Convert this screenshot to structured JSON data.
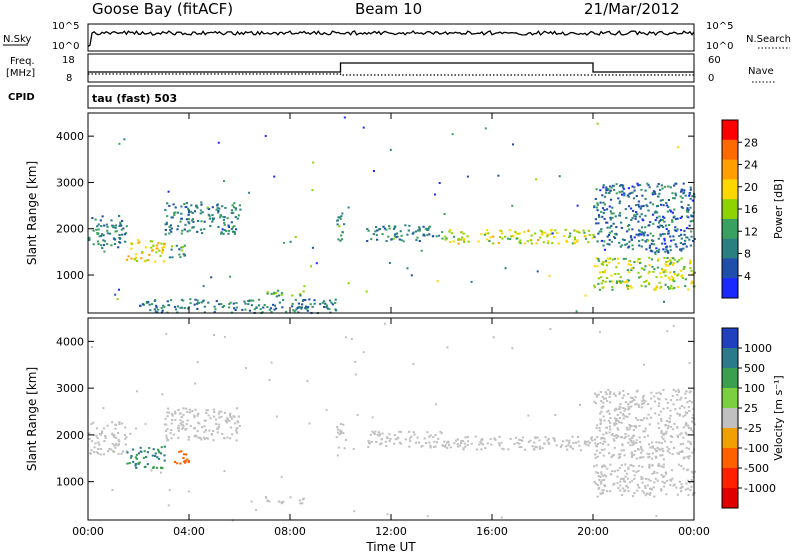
{
  "header": {
    "station": "Goose Bay (fitACF)",
    "beam": "Beam 10",
    "date": "21/Mar/2012"
  },
  "strips": {
    "nsky_label": "N.Sky",
    "nsky_ticks": [
      "10^5",
      "10^0"
    ],
    "nsearch_label": "N.Search",
    "freq_label_1": "Freq.",
    "freq_label_2": "[MHz]",
    "freq_ticks": [
      "18",
      "8"
    ],
    "nave_label": "Nave",
    "nave_ticks": [
      "60",
      "0"
    ],
    "cpid_label": "CPID",
    "cpid_value": "tau (fast) 503"
  },
  "axes": {
    "xlabel": "Time UT",
    "xticks": [
      "00:00",
      "04:00",
      "08:00",
      "12:00",
      "16:00",
      "20:00",
      "00:00"
    ],
    "ylabel": "Slant Range [km]",
    "yticks": [
      "4000",
      "3000",
      "2000",
      "1000"
    ]
  },
  "power_cbar": {
    "label": "Power [dB]",
    "ticks": [
      "28",
      "24",
      "20",
      "16",
      "12",
      "8",
      "4"
    ],
    "colors": [
      "#ff0000",
      "#ff6a00",
      "#ffa000",
      "#ffd700",
      "#8fd400",
      "#3aa060",
      "#2a7f80",
      "#1f4faa",
      "#1a2aff"
    ]
  },
  "velocity_cbar": {
    "label": "Velocity [m s⁻¹]",
    "ticks": [
      "1000",
      "500",
      "100",
      "25",
      "-25",
      "-100",
      "-500",
      "-1000"
    ],
    "colors": [
      "#2040c0",
      "#2a7a8a",
      "#3aa050",
      "#7cd040",
      "#c0c0c0",
      "#f0a000",
      "#ff6000",
      "#ff2000",
      "#e00000"
    ]
  },
  "chart_data": [
    {
      "type": "heatmap",
      "name": "power",
      "xlabel": "Time UT",
      "ylabel": "Slant Range [km]",
      "xlim": [
        0,
        24
      ],
      "ylim": [
        180,
        4500
      ],
      "colorbar_label": "Power [dB]",
      "colorbar_ticks": [
        28,
        24,
        20,
        16,
        12,
        8,
        4
      ],
      "blobs": [
        {
          "t0": 0.0,
          "t1": 1.5,
          "r0": 1600,
          "r1": 2300,
          "val": 8
        },
        {
          "t0": 1.5,
          "t1": 3.0,
          "r0": 1300,
          "r1": 1800,
          "val": 18
        },
        {
          "t0": 3.0,
          "t1": 6.0,
          "r0": 1900,
          "r1": 2600,
          "val": 8
        },
        {
          "t0": 3.2,
          "t1": 4.0,
          "r0": 1400,
          "r1": 1700,
          "val": 10
        },
        {
          "t0": 7.0,
          "t1": 8.6,
          "r0": 550,
          "r1": 700,
          "val": 12
        },
        {
          "t0": 2.0,
          "t1": 10.0,
          "r0": 200,
          "r1": 500,
          "val": 8
        },
        {
          "t0": 9.8,
          "t1": 10.2,
          "r0": 1700,
          "r1": 2300,
          "val": 10
        },
        {
          "t0": 11.0,
          "t1": 14.0,
          "r0": 1750,
          "r1": 2100,
          "val": 8
        },
        {
          "t0": 14.0,
          "t1": 20.0,
          "r0": 1700,
          "r1": 2000,
          "val": 17
        },
        {
          "t0": 20.0,
          "t1": 24.0,
          "r0": 700,
          "r1": 1400,
          "val": 15
        },
        {
          "t0": 20.0,
          "t1": 24.0,
          "r0": 1500,
          "r1": 3000,
          "val": 6
        }
      ]
    },
    {
      "type": "heatmap",
      "name": "velocity",
      "xlabel": "Time UT",
      "ylabel": "Slant Range [km]",
      "xlim": [
        0,
        24
      ],
      "ylim": [
        180,
        4500
      ],
      "colorbar_label": "Velocity [m s⁻¹]",
      "colorbar_ticks": [
        1000,
        500,
        100,
        25,
        -25,
        -100,
        -500,
        -1000
      ],
      "blobs": [
        {
          "t0": 0.0,
          "t1": 1.5,
          "r0": 1600,
          "r1": 2300,
          "val": 0
        },
        {
          "t0": 1.5,
          "t1": 3.0,
          "r0": 1300,
          "r1": 1800,
          "val": 300
        },
        {
          "t0": 3.0,
          "t1": 6.0,
          "r0": 1900,
          "r1": 2600,
          "val": 0
        },
        {
          "t0": 3.2,
          "t1": 4.0,
          "r0": 1400,
          "r1": 1700,
          "val": -400
        },
        {
          "t0": 7.0,
          "t1": 8.6,
          "r0": 550,
          "r1": 700,
          "val": 0
        },
        {
          "t0": 9.8,
          "t1": 10.2,
          "r0": 1700,
          "r1": 2300,
          "val": 0
        },
        {
          "t0": 11.0,
          "t1": 14.0,
          "r0": 1750,
          "r1": 2100,
          "val": 0
        },
        {
          "t0": 14.0,
          "t1": 20.0,
          "r0": 1700,
          "r1": 2000,
          "val": 0
        },
        {
          "t0": 20.0,
          "t1": 24.0,
          "r0": 700,
          "r1": 1400,
          "val": 0
        },
        {
          "t0": 20.0,
          "t1": 24.0,
          "r0": 1500,
          "r1": 3000,
          "val": -50
        }
      ]
    }
  ]
}
